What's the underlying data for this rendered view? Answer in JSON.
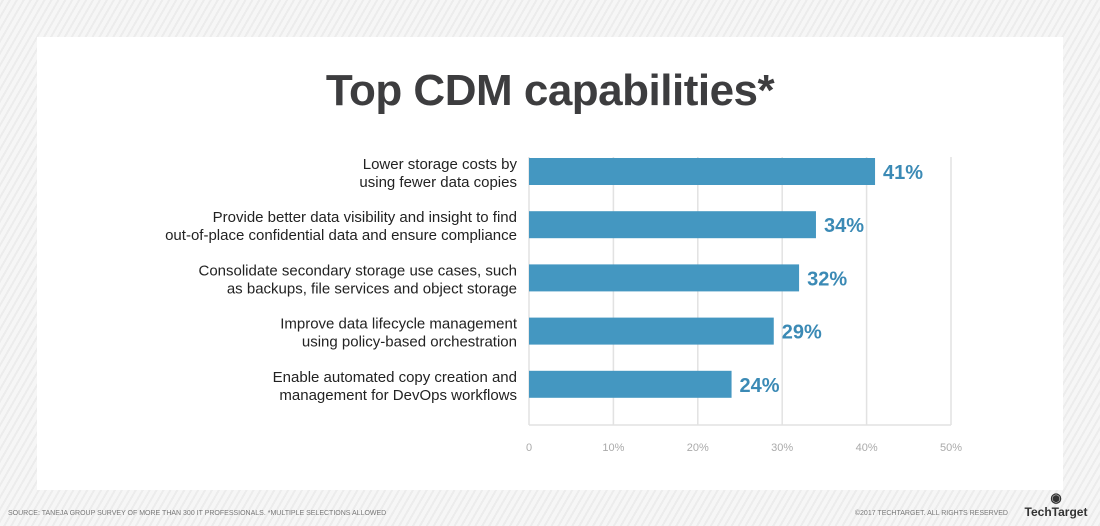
{
  "chart_data": {
    "type": "bar",
    "orientation": "horizontal",
    "title": "Top CDM capabilities*",
    "categories": [
      [
        "Lower storage costs by",
        "using fewer data copies"
      ],
      [
        "Provide better data visibility and insight to find",
        "out-of-place confidential data and ensure compliance"
      ],
      [
        "Consolidate secondary storage use cases, such",
        "as backups, file services and object storage"
      ],
      [
        "Improve data lifecycle management",
        "using policy-based orchestration"
      ],
      [
        "Enable automated copy creation and",
        "management for DevOps workflows"
      ]
    ],
    "values": [
      41,
      34,
      32,
      29,
      24
    ],
    "data_labels": [
      "41%",
      "34%",
      "32%",
      "29%",
      "24%"
    ],
    "xlim": [
      0,
      50
    ],
    "xticks": [
      "0",
      "10%",
      "20%",
      "30%",
      "40%",
      "50%"
    ],
    "grid": true,
    "bar_color": "#4497c1",
    "label_color": "#3b8ab5"
  },
  "footer": {
    "source": "SOURCE: TANEJA GROUP SURVEY OF MORE THAN 300 IT PROFESSIONALS. *MULTIPLE SELECTIONS ALLOWED",
    "copyright": "©2017 TECHTARGET. ALL RIGHTS RESERVED",
    "logo": "TechTarget"
  }
}
